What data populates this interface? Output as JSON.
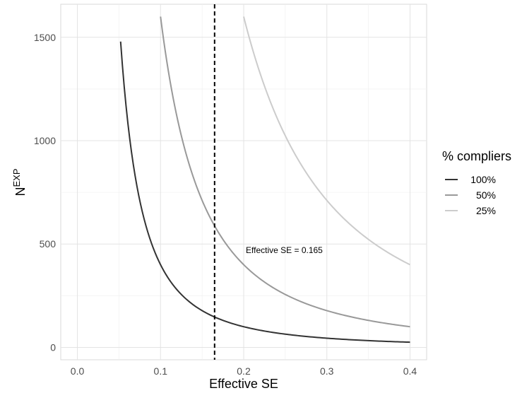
{
  "chart_data": {
    "type": "line",
    "xlabel": "Effective SE",
    "ylabel_main": "N",
    "ylabel_sup": "EXP",
    "xlim": [
      -0.02,
      0.42
    ],
    "ylim": [
      -60,
      1660
    ],
    "x_ticks": [
      0.0,
      0.1,
      0.2,
      0.3,
      0.4
    ],
    "x_tick_labels": [
      "0.0",
      "0.1",
      "0.2",
      "0.3",
      "0.4"
    ],
    "y_ticks": [
      0,
      500,
      1000,
      1500
    ],
    "y_tick_labels": [
      "0",
      "500",
      "1000",
      "1500"
    ],
    "grid": true,
    "legend_position": "right",
    "legend_title": "% compliers",
    "series": [
      {
        "name": "100%",
        "color": "#333333",
        "x_start": 0.052,
        "x_end": 0.4,
        "k": 4.0,
        "points": [
          [
            0.052,
            1479
          ],
          [
            0.06,
            1111
          ],
          [
            0.08,
            625
          ],
          [
            0.1,
            400
          ],
          [
            0.12,
            278
          ],
          [
            0.165,
            147
          ],
          [
            0.2,
            100
          ],
          [
            0.25,
            64
          ],
          [
            0.3,
            44
          ],
          [
            0.35,
            33
          ],
          [
            0.4,
            25
          ]
        ]
      },
      {
        "name": "50%",
        "color": "#999999",
        "x_start": 0.1,
        "x_end": 0.4,
        "k": 16.0,
        "points": [
          [
            0.1,
            1600
          ],
          [
            0.12,
            1111
          ],
          [
            0.14,
            816
          ],
          [
            0.165,
            588
          ],
          [
            0.2,
            400
          ],
          [
            0.25,
            256
          ],
          [
            0.3,
            178
          ],
          [
            0.35,
            131
          ],
          [
            0.4,
            100
          ]
        ]
      },
      {
        "name": "25%",
        "color": "#cccccc",
        "x_start": 0.2,
        "x_end": 0.4,
        "k": 64.0,
        "points": [
          [
            0.2,
            1600
          ],
          [
            0.22,
            1322
          ],
          [
            0.25,
            1024
          ],
          [
            0.3,
            711
          ],
          [
            0.35,
            522
          ],
          [
            0.4,
            400
          ]
        ]
      }
    ],
    "vline": {
      "x": 0.165,
      "style": "dashed",
      "color": "#000000"
    },
    "annotation": {
      "text": "Effective SE  = 0.165",
      "x": 0.2,
      "y": 470
    }
  }
}
